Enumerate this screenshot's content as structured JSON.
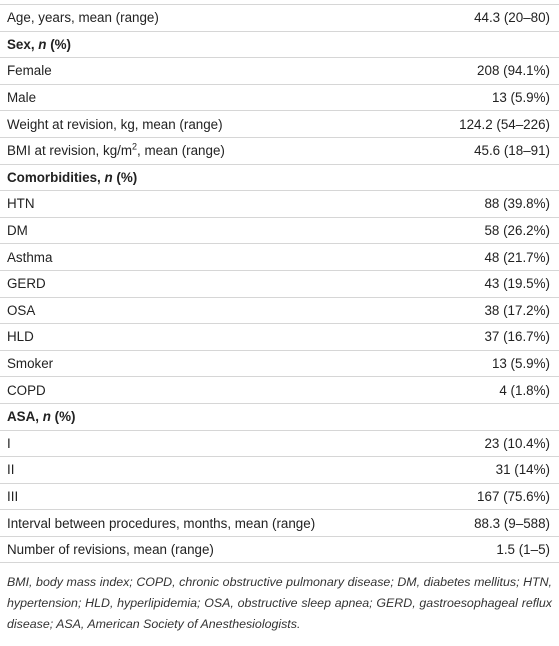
{
  "table": {
    "rows": [
      {
        "label": "Age, years, mean (range)",
        "value": "44.3 (20–80)"
      },
      {
        "label": [
          "Sex, ",
          "n",
          " (%)"
        ]
      },
      {
        "label": "Female",
        "value": "208 (94.1%)"
      },
      {
        "label": "Male",
        "value": "13 (5.9%)"
      },
      {
        "label": "Weight at revision, kg, mean (range)",
        "value": "124.2 (54–226)"
      },
      {
        "label": [
          "BMI at revision, kg/m",
          "2",
          ", mean (range)"
        ],
        "value": "45.6 (18–91)"
      },
      {
        "label": [
          "Comorbidities, ",
          "n",
          " (%)"
        ]
      },
      {
        "label": "HTN",
        "value": "88 (39.8%)"
      },
      {
        "label": "DM",
        "value": "58 (26.2%)"
      },
      {
        "label": "Asthma",
        "value": "48 (21.7%)"
      },
      {
        "label": "GERD",
        "value": "43 (19.5%)"
      },
      {
        "label": "OSA",
        "value": "38 (17.2%)"
      },
      {
        "label": "HLD",
        "value": "37 (16.7%)"
      },
      {
        "label": "Smoker",
        "value": "13 (5.9%)"
      },
      {
        "label": "COPD",
        "value": "4 (1.8%)"
      },
      {
        "label": [
          "ASA, ",
          "n",
          " (%)"
        ]
      },
      {
        "label": "I",
        "value": "23 (10.4%)"
      },
      {
        "label": "II",
        "value": "31 (14%)"
      },
      {
        "label": "III",
        "value": "167 (75.6%)"
      },
      {
        "label": "Interval between procedures, months, mean (range)",
        "value": "88.3 (9–588)"
      },
      {
        "label": "Number of revisions, mean (range)",
        "value": "1.5 (1–5)"
      }
    ]
  },
  "footnote": "BMI, body mass index; COPD, chronic obstructive pulmonary disease; DM, diabetes mellitus; HTN, hypertension; HLD, hyperlipidemia; OSA, obstructive sleep apnea; GERD, gastroesophageal reflux disease; ASA, American Society of Anesthesiologists."
}
